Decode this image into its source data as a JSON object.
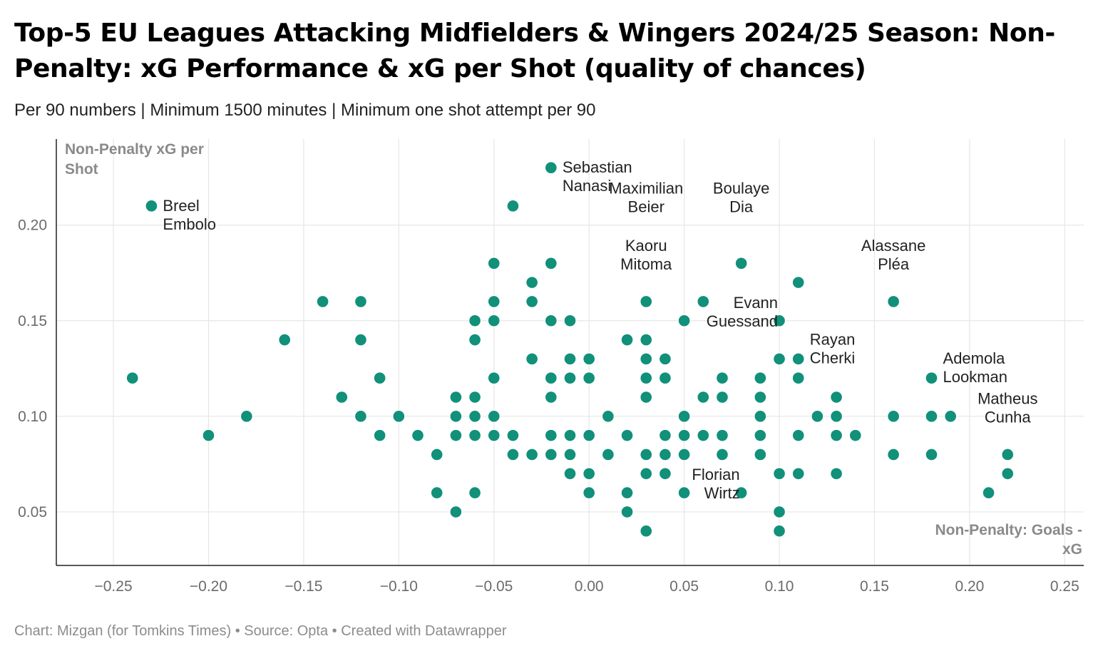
{
  "title": "Top-5 EU Leagues Attacking Midfielders & Wingers 2024/25 Season: Non-Penalty: xG Performance & xG per Shot (quality of chances)",
  "subtitle": "Per 90 numbers | Minimum 1500 minutes | Minimum one shot attempt per 90",
  "footer": "Chart: Mizgan (for Tomkins Times) • Source: Opta • Created with Datawrapper",
  "colors": {
    "point": "#11907a",
    "grid": "#e6e6e6",
    "axis": "#222222"
  },
  "chart_data": {
    "type": "scatter",
    "xlabel": "Non-Penalty: Goals - xG",
    "ylabel": "Non-Penalty xG per Shot",
    "xlim": [
      -0.28,
      0.26
    ],
    "ylim": [
      0.022,
      0.245
    ],
    "xticks": [
      "−0.25",
      "−0.20",
      "−0.15",
      "−0.10",
      "−0.05",
      "0.00",
      "0.05",
      "0.10",
      "0.15",
      "0.20",
      "0.25"
    ],
    "xtick_values": [
      -0.25,
      -0.2,
      -0.15,
      -0.1,
      -0.05,
      0,
      0.05,
      0.1,
      0.15,
      0.2,
      0.25
    ],
    "yticks": [
      "0.05",
      "0.10",
      "0.15",
      "0.20"
    ],
    "ytick_values": [
      0.05,
      0.1,
      0.15,
      0.2
    ],
    "grid": true,
    "points": [
      {
        "x": -0.24,
        "y": 0.12
      },
      {
        "x": -0.23,
        "y": 0.21
      },
      {
        "x": -0.2,
        "y": 0.09
      },
      {
        "x": -0.18,
        "y": 0.1
      },
      {
        "x": -0.16,
        "y": 0.14
      },
      {
        "x": -0.14,
        "y": 0.16
      },
      {
        "x": -0.13,
        "y": 0.11
      },
      {
        "x": -0.12,
        "y": 0.16
      },
      {
        "x": -0.12,
        "y": 0.14
      },
      {
        "x": -0.12,
        "y": 0.1
      },
      {
        "x": -0.11,
        "y": 0.12
      },
      {
        "x": -0.11,
        "y": 0.09
      },
      {
        "x": -0.1,
        "y": 0.1
      },
      {
        "x": -0.09,
        "y": 0.09
      },
      {
        "x": -0.08,
        "y": 0.08
      },
      {
        "x": -0.08,
        "y": 0.06
      },
      {
        "x": -0.07,
        "y": 0.11
      },
      {
        "x": -0.07,
        "y": 0.1
      },
      {
        "x": -0.07,
        "y": 0.09
      },
      {
        "x": -0.07,
        "y": 0.05
      },
      {
        "x": -0.06,
        "y": 0.15
      },
      {
        "x": -0.06,
        "y": 0.14
      },
      {
        "x": -0.06,
        "y": 0.11
      },
      {
        "x": -0.06,
        "y": 0.1
      },
      {
        "x": -0.06,
        "y": 0.09
      },
      {
        "x": -0.06,
        "y": 0.06
      },
      {
        "x": -0.05,
        "y": 0.18
      },
      {
        "x": -0.05,
        "y": 0.16
      },
      {
        "x": -0.05,
        "y": 0.15
      },
      {
        "x": -0.05,
        "y": 0.12
      },
      {
        "x": -0.05,
        "y": 0.1
      },
      {
        "x": -0.05,
        "y": 0.09
      },
      {
        "x": -0.04,
        "y": 0.21
      },
      {
        "x": -0.04,
        "y": 0.09
      },
      {
        "x": -0.04,
        "y": 0.08
      },
      {
        "x": -0.03,
        "y": 0.17
      },
      {
        "x": -0.03,
        "y": 0.16
      },
      {
        "x": -0.03,
        "y": 0.13
      },
      {
        "x": -0.03,
        "y": 0.08
      },
      {
        "x": -0.02,
        "y": 0.23
      },
      {
        "x": -0.02,
        "y": 0.18
      },
      {
        "x": -0.02,
        "y": 0.15
      },
      {
        "x": -0.02,
        "y": 0.12
      },
      {
        "x": -0.02,
        "y": 0.11
      },
      {
        "x": -0.02,
        "y": 0.09
      },
      {
        "x": -0.02,
        "y": 0.08
      },
      {
        "x": -0.01,
        "y": 0.15
      },
      {
        "x": -0.01,
        "y": 0.13
      },
      {
        "x": -0.01,
        "y": 0.12
      },
      {
        "x": -0.01,
        "y": 0.09
      },
      {
        "x": -0.01,
        "y": 0.08
      },
      {
        "x": -0.01,
        "y": 0.07
      },
      {
        "x": 0.0,
        "y": 0.13
      },
      {
        "x": 0.0,
        "y": 0.12
      },
      {
        "x": 0.0,
        "y": 0.09
      },
      {
        "x": 0.0,
        "y": 0.07
      },
      {
        "x": 0.0,
        "y": 0.06
      },
      {
        "x": 0.01,
        "y": 0.1
      },
      {
        "x": 0.01,
        "y": 0.08
      },
      {
        "x": 0.02,
        "y": 0.14
      },
      {
        "x": 0.02,
        "y": 0.09
      },
      {
        "x": 0.02,
        "y": 0.06
      },
      {
        "x": 0.02,
        "y": 0.05
      },
      {
        "x": 0.03,
        "y": 0.16
      },
      {
        "x": 0.03,
        "y": 0.14
      },
      {
        "x": 0.03,
        "y": 0.13
      },
      {
        "x": 0.03,
        "y": 0.12
      },
      {
        "x": 0.03,
        "y": 0.11
      },
      {
        "x": 0.03,
        "y": 0.08
      },
      {
        "x": 0.03,
        "y": 0.07
      },
      {
        "x": 0.03,
        "y": 0.04
      },
      {
        "x": 0.04,
        "y": 0.13
      },
      {
        "x": 0.04,
        "y": 0.12
      },
      {
        "x": 0.04,
        "y": 0.09
      },
      {
        "x": 0.04,
        "y": 0.08
      },
      {
        "x": 0.04,
        "y": 0.07
      },
      {
        "x": 0.05,
        "y": 0.15
      },
      {
        "x": 0.05,
        "y": 0.1
      },
      {
        "x": 0.05,
        "y": 0.09
      },
      {
        "x": 0.05,
        "y": 0.08
      },
      {
        "x": 0.05,
        "y": 0.06
      },
      {
        "x": 0.06,
        "y": 0.16
      },
      {
        "x": 0.06,
        "y": 0.11
      },
      {
        "x": 0.06,
        "y": 0.09
      },
      {
        "x": 0.07,
        "y": 0.12
      },
      {
        "x": 0.07,
        "y": 0.11
      },
      {
        "x": 0.07,
        "y": 0.09
      },
      {
        "x": 0.07,
        "y": 0.08
      },
      {
        "x": 0.08,
        "y": 0.18
      },
      {
        "x": 0.08,
        "y": 0.06
      },
      {
        "x": 0.09,
        "y": 0.12
      },
      {
        "x": 0.09,
        "y": 0.11
      },
      {
        "x": 0.09,
        "y": 0.1
      },
      {
        "x": 0.09,
        "y": 0.09
      },
      {
        "x": 0.09,
        "y": 0.08
      },
      {
        "x": 0.1,
        "y": 0.15
      },
      {
        "x": 0.1,
        "y": 0.13
      },
      {
        "x": 0.1,
        "y": 0.07
      },
      {
        "x": 0.1,
        "y": 0.05
      },
      {
        "x": 0.1,
        "y": 0.04
      },
      {
        "x": 0.11,
        "y": 0.17
      },
      {
        "x": 0.11,
        "y": 0.13
      },
      {
        "x": 0.11,
        "y": 0.12
      },
      {
        "x": 0.11,
        "y": 0.09
      },
      {
        "x": 0.11,
        "y": 0.07
      },
      {
        "x": 0.12,
        "y": 0.1
      },
      {
        "x": 0.13,
        "y": 0.11
      },
      {
        "x": 0.13,
        "y": 0.1
      },
      {
        "x": 0.13,
        "y": 0.09
      },
      {
        "x": 0.13,
        "y": 0.07
      },
      {
        "x": 0.14,
        "y": 0.09
      },
      {
        "x": 0.16,
        "y": 0.16
      },
      {
        "x": 0.16,
        "y": 0.1
      },
      {
        "x": 0.16,
        "y": 0.08
      },
      {
        "x": 0.18,
        "y": 0.12
      },
      {
        "x": 0.18,
        "y": 0.1
      },
      {
        "x": 0.18,
        "y": 0.08
      },
      {
        "x": 0.19,
        "y": 0.1
      },
      {
        "x": 0.21,
        "y": 0.06
      },
      {
        "x": 0.22,
        "y": 0.08
      },
      {
        "x": 0.22,
        "y": 0.07
      }
    ],
    "annotations": [
      {
        "lines": [
          "Breel",
          "Embolo"
        ],
        "x": -0.23,
        "y": 0.21,
        "align": "left"
      },
      {
        "lines": [
          "Sebastian",
          "Nanasi"
        ],
        "x": -0.02,
        "y": 0.23,
        "align": "left"
      },
      {
        "lines": [
          "Maximilian",
          "Beier"
        ],
        "x": 0.03,
        "y": 0.2,
        "align": "center"
      },
      {
        "lines": [
          "Kaoru",
          "Mitoma"
        ],
        "x": 0.03,
        "y": 0.17,
        "align": "center"
      },
      {
        "lines": [
          "Boulaye",
          "Dia"
        ],
        "x": 0.08,
        "y": 0.2,
        "align": "center"
      },
      {
        "lines": [
          "Alassane",
          "Pléa"
        ],
        "x": 0.16,
        "y": 0.17,
        "align": "center"
      },
      {
        "lines": [
          "Evann",
          "Guessand"
        ],
        "x": 0.1,
        "y": 0.15,
        "align": "right"
      },
      {
        "lines": [
          "Rayan",
          "Cherki"
        ],
        "x": 0.11,
        "y": 0.13,
        "align": "left"
      },
      {
        "lines": [
          "Ademola",
          "Lookman"
        ],
        "x": 0.18,
        "y": 0.12,
        "align": "left"
      },
      {
        "lines": [
          "Matheus",
          "Cunha"
        ],
        "x": 0.22,
        "y": 0.09,
        "align": "center"
      },
      {
        "lines": [
          "Florian",
          "Wirtz"
        ],
        "x": 0.08,
        "y": 0.06,
        "align": "right"
      }
    ]
  }
}
